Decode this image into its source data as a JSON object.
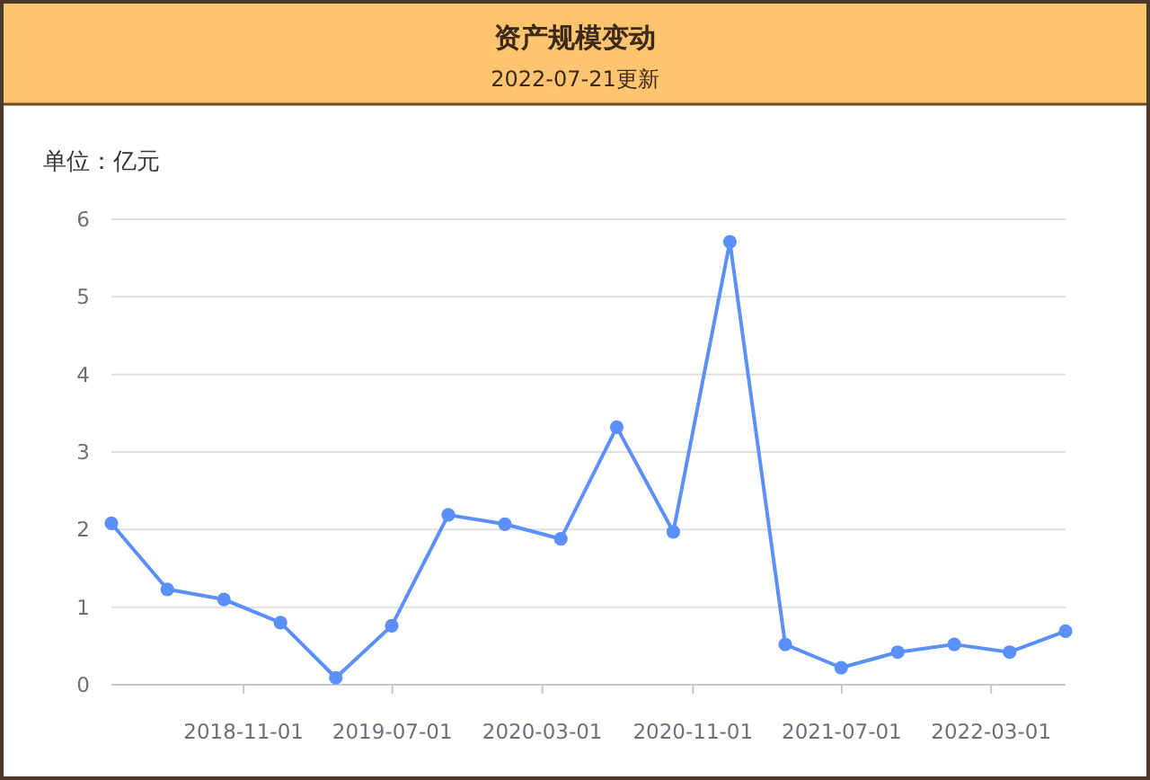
{
  "chart_data": {
    "type": "line",
    "title": "资产规模变动",
    "subtitle": "2022-07-21更新",
    "ylabel": "单位：亿元",
    "x": [
      "2018-03-31",
      "2018-06-30",
      "2018-09-30",
      "2018-12-31",
      "2019-03-31",
      "2019-06-30",
      "2019-09-30",
      "2019-12-31",
      "2020-03-31",
      "2020-06-30",
      "2020-09-30",
      "2020-12-31",
      "2021-03-31",
      "2021-06-30",
      "2021-09-30",
      "2021-12-31",
      "2022-03-31",
      "2022-06-30"
    ],
    "series": [
      {
        "color": "#5b8ff9",
        "values": [
          2.08,
          1.23,
          1.1,
          0.8,
          0.09,
          0.76,
          2.19,
          2.07,
          1.88,
          3.32,
          1.97,
          5.71,
          0.52,
          0.22,
          0.42,
          0.52,
          0.42,
          0.69
        ]
      }
    ],
    "xlim": [
      "2018-03-31",
      "2022-06-30"
    ],
    "xticks": [
      "2018-11-01",
      "2019-07-01",
      "2020-03-01",
      "2020-11-01",
      "2021-07-01",
      "2022-03-01"
    ],
    "ylim": [
      0,
      6
    ],
    "yticks": [
      0,
      1,
      2,
      3,
      4,
      5,
      6
    ],
    "grid": "y",
    "marker": "circle",
    "line_style": "solid"
  }
}
